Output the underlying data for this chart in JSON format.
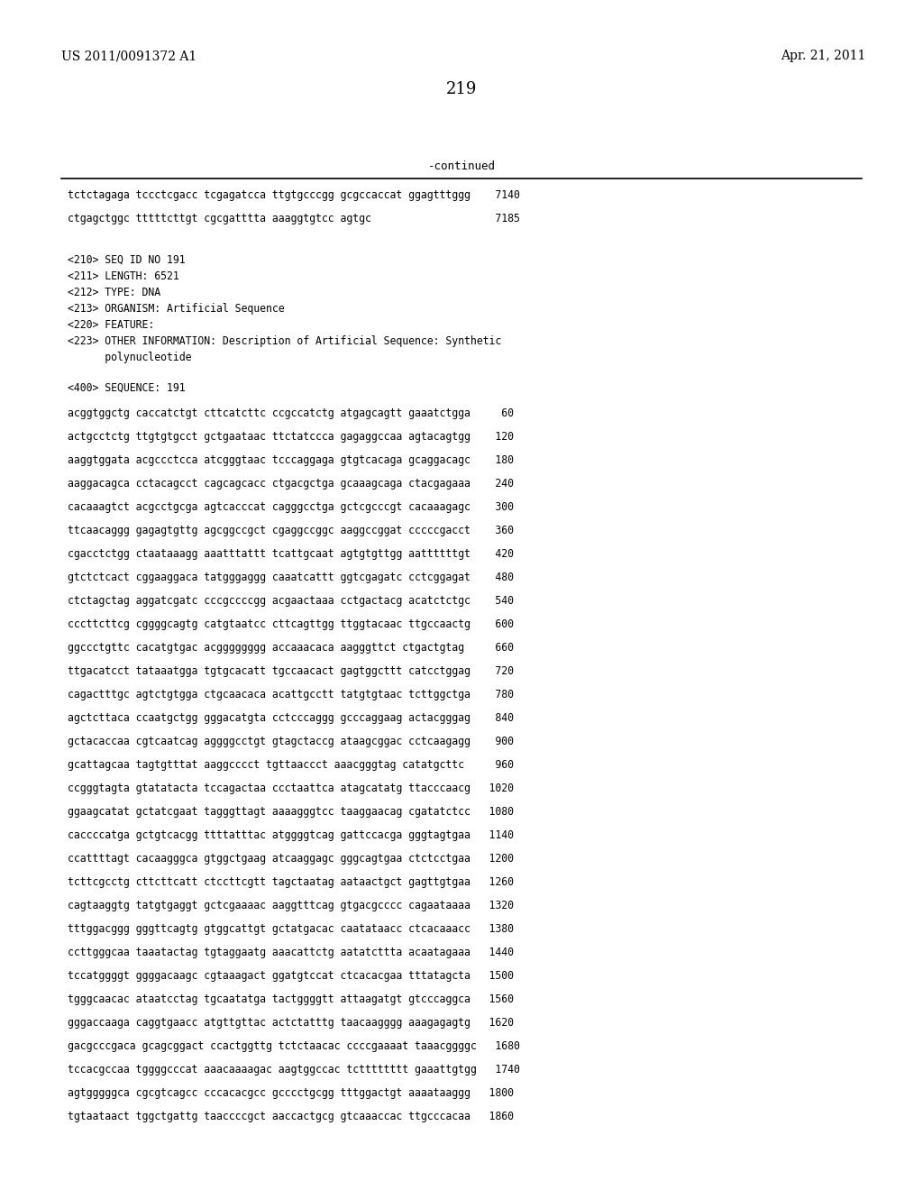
{
  "header_left": "US 2011/0091372 A1",
  "header_right": "Apr. 21, 2011",
  "page_number": "219",
  "continued_label": "-continued",
  "background_color": "#ffffff",
  "text_color": "#000000",
  "continued_lines": [
    "tctctagaga tccctcgacc tcgagatcca ttgtgcccgg gcgccaccat ggagtttggg    7140",
    "ctgagctggc tttttcttgt cgcgatttta aaaggtgtcc agtgc                    7185"
  ],
  "metadata_lines": [
    "<210> SEQ ID NO 191",
    "<211> LENGTH: 6521",
    "<212> TYPE: DNA",
    "<213> ORGANISM: Artificial Sequence",
    "<220> FEATURE:",
    "<223> OTHER INFORMATION: Description of Artificial Sequence: Synthetic",
    "      polynucleotide"
  ],
  "sequence_label": "<400> SEQUENCE: 191",
  "sequence_lines": [
    "acggtggctg caccatctgt cttcatcttc ccgccatctg atgagcagtt gaaatctgga     60",
    "actgcctctg ttgtgtgcct gctgaataac ttctatccca gagaggccaa agtacagtgg    120",
    "aaggtggata acgccctcca atcgggtaac tcccaggaga gtgtcacaga gcaggacagc    180",
    "aaggacagca cctacagcct cagcagcacc ctgacgctga gcaaagcaga ctacgagaaa    240",
    "cacaaagtct acgcctgcga agtcacccat cagggcctga gctcgcccgt cacaaagagc    300",
    "ttcaacaggg gagagtgttg agcggccgct cgaggccggc aaggccggat cccccgacct    360",
    "cgacctctgg ctaataaagg aaatttattt tcattgcaat agtgtgttgg aattttttgt    420",
    "gtctctcact cggaaggaca tatgggaggg caaatcattt ggtcgagatc cctcggagat    480",
    "ctctagctag aggatcgatc cccgccccgg acgaactaaa cctgactacg acatctctgc    540",
    "cccttcttcg cggggcagtg catgtaatcc cttcagttgg ttggtacaac ttgccaactg    600",
    "ggccctgttc cacatgtgac acgggggggg accaaacaca aagggttct ctgactgtag     660",
    "ttgacatcct tataaatgga tgtgcacatt tgccaacact gagtggcttt catcctggag    720",
    "cagactttgc agtctgtgga ctgcaacaca acattgcctt tatgtgtaac tcttggctga    780",
    "agctcttaca ccaatgctgg gggacatgta cctcccaggg gcccaggaag actacgggag    840",
    "gctacaccaa cgtcaatcag aggggcctgt gtagctaccg ataagcggac cctcaagagg    900",
    "gcattagcaa tagtgtttat aaggcccct tgttaaccct aaacgggtag catatgcttc     960",
    "ccgggtagta gtatatacta tccagactaa ccctaattca atagcatatg ttacccaacg   1020",
    "ggaagcatat gctatcgaat tagggttagt aaaagggtcc taaggaacag cgatatctcc   1080",
    "caccccatga gctgtcacgg ttttatttac atggggtcag gattccacga gggtagtgaa   1140",
    "ccattttagt cacaagggca gtggctgaag atcaaggagc gggcagtgaa ctctcctgaa   1200",
    "tcttcgcctg cttcttcatt ctccttcgtt tagctaatag aataactgct gagttgtgaa   1260",
    "cagtaaggtg tatgtgaggt gctcgaaaac aaggtttcag gtgacgcccc cagaataaaa   1320",
    "tttggacggg gggttcagtg gtggcattgt gctatgacac caatataacc ctcacaaacc   1380",
    "ccttgggcaa taaatactag tgtaggaatg aaacattctg aatatcttta acaatagaaa   1440",
    "tccatggggt ggggacaagc cgtaaagact ggatgtccat ctcacacgaa tttatagcta   1500",
    "tgggcaacac ataatcctag tgcaatatga tactggggtt attaagatgt gtcccaggca   1560",
    "gggaccaaga caggtgaacc atgttgttac actctatttg taacaagggg aaagagagtg   1620",
    "gacgcccgaca gcagcggact ccactggttg tctctaacac ccccgaaaat taaacggggc   1680",
    "tccacgccaa tggggcccat aaacaaaagac aagtggccac tctttttttt gaaattgtgg   1740",
    "agtgggggca cgcgtcagcc cccacacgcc gcccctgcgg tttggactgt aaaataaggg   1800",
    "tgtaataact tggctgattg taaccccgct aaccactgcg gtcaaaccac ttgcccacaa   1860"
  ]
}
